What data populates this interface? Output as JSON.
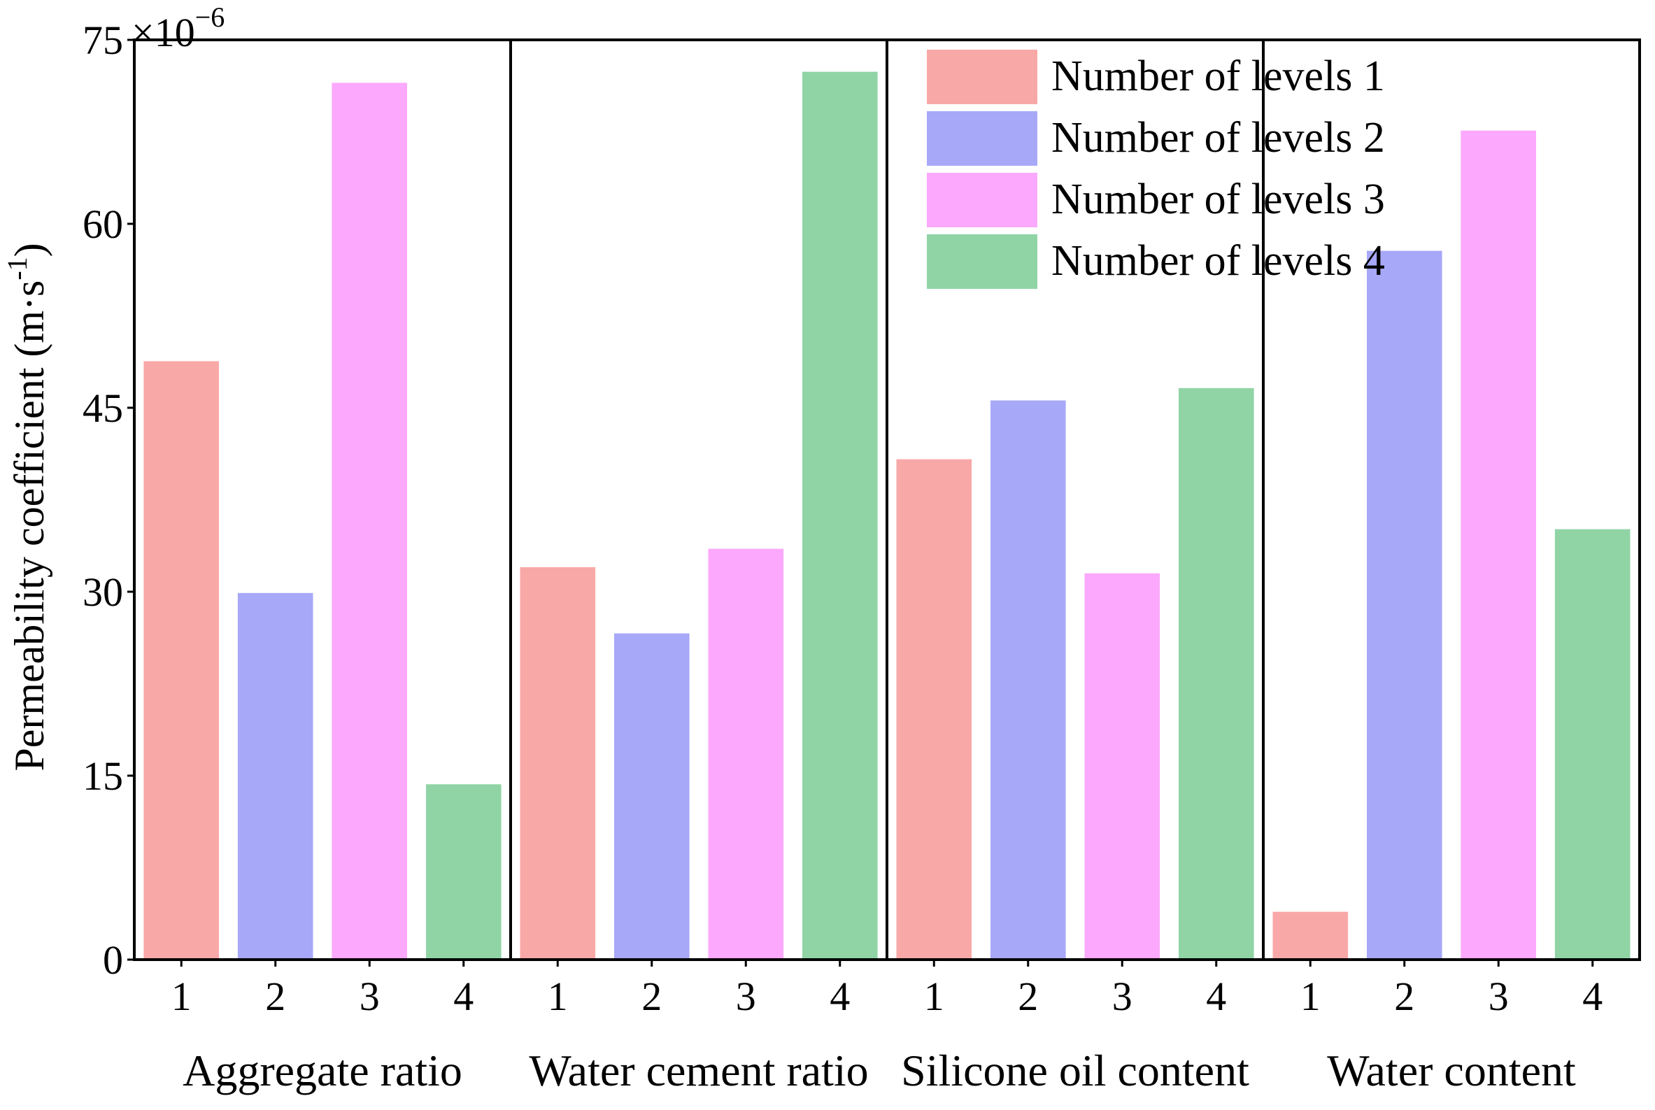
{
  "chart_data": {
    "type": "bar",
    "ylabel": "Permeability coefficient (m·s",
    "ylabel_sup": "-1",
    "ylabel_close": ")",
    "y_multiplier": "×10",
    "y_multiplier_exp": "−6",
    "ylim": [
      0,
      75
    ],
    "yticks": [
      0,
      15,
      30,
      45,
      60,
      75
    ],
    "groups": [
      "Aggregate ratio",
      "Water cement ratio",
      "Silicone oil content",
      "Water content"
    ],
    "categories": [
      "1",
      "2",
      "3",
      "4"
    ],
    "series": [
      {
        "name": "Number of levels 1",
        "color": "#f9a8a8",
        "values": [
          48.8,
          32.0,
          40.8,
          3.9
        ]
      },
      {
        "name": "Number of levels 2",
        "color": "#a8a8f9",
        "values": [
          29.9,
          26.6,
          45.6,
          57.8
        ]
      },
      {
        "name": "Number of levels 3",
        "color": "#fca8fc",
        "values": [
          71.5,
          33.5,
          31.5,
          67.6
        ]
      },
      {
        "name": "Number of levels 4",
        "color": "#90d4a6",
        "values": [
          14.3,
          72.4,
          46.6,
          35.1
        ]
      }
    ],
    "legend_position": "top-right"
  }
}
